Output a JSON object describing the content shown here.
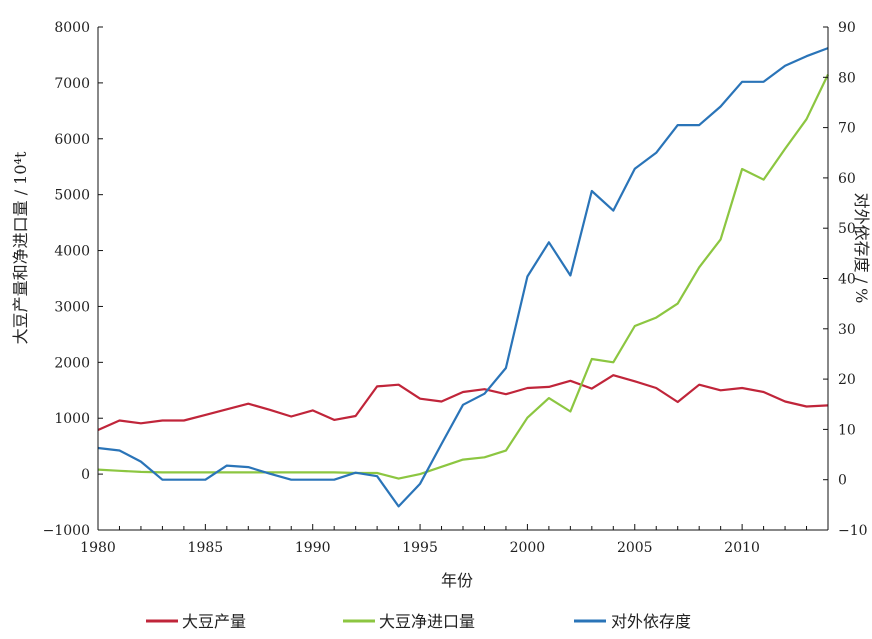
{
  "chart_data": {
    "type": "line",
    "title": "",
    "xlabel": "年份",
    "ylabel_left": "大豆产量和净进口量 / 10⁴t",
    "ylabel_right": "对外依存度 / %",
    "xlim": [
      1980,
      2014
    ],
    "ylim_left": [
      -1000,
      8000
    ],
    "ylim_right": [
      -10,
      90
    ],
    "x_ticks": [
      1980,
      1985,
      1990,
      1995,
      2000,
      2005,
      2010
    ],
    "y_left_ticks": [
      -1000,
      0,
      1000,
      2000,
      3000,
      4000,
      5000,
      6000,
      7000,
      8000
    ],
    "y_right_ticks": [
      -10,
      0,
      10,
      20,
      30,
      40,
      50,
      60,
      70,
      80,
      90
    ],
    "grid": false,
    "legend_position": "bottom",
    "x": [
      1980,
      1981,
      1982,
      1983,
      1984,
      1985,
      1986,
      1987,
      1988,
      1989,
      1990,
      1991,
      1992,
      1993,
      1994,
      1995,
      1996,
      1997,
      1998,
      1999,
      2000,
      2001,
      2002,
      2003,
      2004,
      2005,
      2006,
      2007,
      2008,
      2009,
      2010,
      2011,
      2012,
      2013,
      2014
    ],
    "series": [
      {
        "name": "大豆产量",
        "axis": "left",
        "color": "#c0253a",
        "values": [
          790,
          960,
          910,
          960,
          960,
          1060,
          1160,
          1260,
          1150,
          1030,
          1140,
          970,
          1040,
          1570,
          1600,
          1350,
          1300,
          1470,
          1520,
          1430,
          1540,
          1560,
          1670,
          1530,
          1770,
          1660,
          1540,
          1290,
          1600,
          1500,
          1540,
          1470,
          1300,
          1210,
          1230
        ]
      },
      {
        "name": "大豆净进口量",
        "axis": "left",
        "color": "#8cc641",
        "values": [
          80,
          60,
          40,
          30,
          30,
          30,
          30,
          30,
          30,
          30,
          30,
          30,
          20,
          20,
          -80,
          0,
          130,
          260,
          300,
          420,
          1010,
          1360,
          1120,
          2060,
          2000,
          2650,
          2800,
          3050,
          3700,
          4200,
          5460,
          5270,
          5820,
          6350,
          7150
        ]
      },
      {
        "name": "对外依存度",
        "axis": "right",
        "color": "#2a74b8",
        "values": [
          6.3,
          5.8,
          3.6,
          0,
          0,
          0,
          2.8,
          2.5,
          1.2,
          0,
          0,
          0,
          1.4,
          0.7,
          -5.3,
          -0.8,
          7.1,
          14.9,
          17.1,
          22.2,
          40.4,
          47.2,
          40.6,
          57.4,
          53.5,
          61.8,
          65.0,
          70.5,
          70.5,
          74.2,
          79.1,
          79.1,
          82.3,
          84.2,
          85.8
        ]
      }
    ]
  }
}
